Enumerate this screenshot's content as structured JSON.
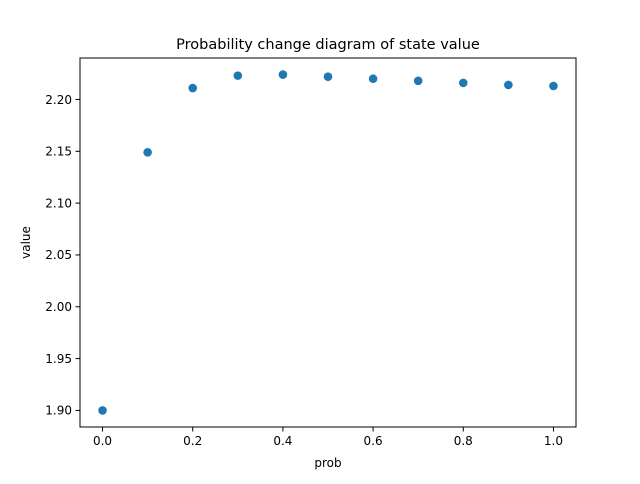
{
  "chart_data": {
    "type": "scatter",
    "title": "Probability change diagram of state value",
    "xlabel": "prob",
    "ylabel": "value",
    "x": [
      0.0,
      0.1,
      0.2,
      0.3,
      0.4,
      0.5,
      0.6,
      0.7,
      0.8,
      0.9,
      1.0
    ],
    "y": [
      1.9,
      2.149,
      2.211,
      2.223,
      2.224,
      2.222,
      2.22,
      2.218,
      2.216,
      2.214,
      2.213
    ],
    "xlim": [
      -0.05,
      1.05
    ],
    "ylim": [
      1.884,
      2.24
    ],
    "xticks": [
      0.0,
      0.2,
      0.4,
      0.6,
      0.8,
      1.0
    ],
    "xtick_labels": [
      "0.0",
      "0.2",
      "0.4",
      "0.6",
      "0.8",
      "1.0"
    ],
    "yticks": [
      1.9,
      1.95,
      2.0,
      2.05,
      2.1,
      2.15,
      2.2
    ],
    "ytick_labels": [
      "1.90",
      "1.95",
      "2.00",
      "2.05",
      "2.10",
      "2.15",
      "2.20"
    ],
    "grid": false,
    "legend": "none",
    "marker_color": "#1f77b4"
  }
}
